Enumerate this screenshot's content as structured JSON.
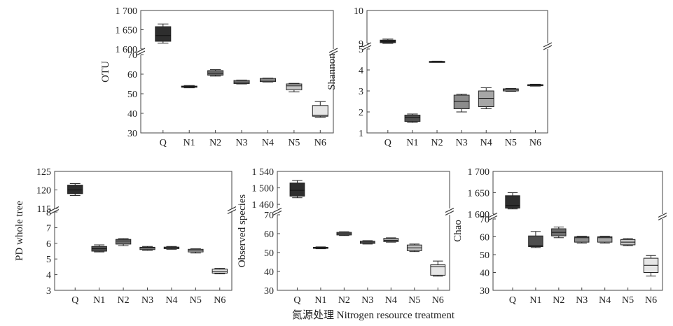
{
  "figure": {
    "x_caption": "氮源处理 Nitrogen resource treatment",
    "colors": [
      "#2e2e2e",
      "#4f4f4f",
      "#6e6e6e",
      "#8c8c8c",
      "#a6a6a6",
      "#c4c4c4",
      "#e6e6e6"
    ]
  },
  "chart_data": [
    {
      "type": "box",
      "ylabel": "OTU",
      "categories": [
        "Q",
        "N1",
        "N2",
        "N3",
        "N4",
        "N5",
        "N6"
      ],
      "broken_axis": true,
      "upper": {
        "ylim": [
          1600,
          1700
        ],
        "ticks": [
          1600,
          1650,
          1700
        ],
        "tick_labels": [
          "1 600",
          "1 650",
          "1 700"
        ]
      },
      "lower": {
        "ylim": [
          30,
          70
        ],
        "ticks": [
          30,
          40,
          50,
          60,
          70
        ],
        "tick_labels": [
          "30",
          "40",
          "50",
          "60",
          "70"
        ]
      },
      "boxes": [
        {
          "cat": "Q",
          "min": 1615,
          "q1": 1620,
          "median": 1635,
          "q3": 1658,
          "max": 1665,
          "segment": "upper"
        },
        {
          "cat": "N1",
          "min": 53,
          "q1": 53.3,
          "median": 53.6,
          "q3": 53.9,
          "max": 54.2,
          "segment": "lower"
        },
        {
          "cat": "N2",
          "min": 59,
          "q1": 59.5,
          "median": 60.5,
          "q3": 61.8,
          "max": 62.3,
          "segment": "lower"
        },
        {
          "cat": "N3",
          "min": 55,
          "q1": 55.2,
          "median": 56,
          "q3": 56.8,
          "max": 57,
          "segment": "lower"
        },
        {
          "cat": "N4",
          "min": 56,
          "q1": 56.2,
          "median": 57,
          "q3": 57.8,
          "max": 58,
          "segment": "lower"
        },
        {
          "cat": "N5",
          "min": 51,
          "q1": 52,
          "median": 54,
          "q3": 55,
          "max": 55.3,
          "segment": "lower"
        },
        {
          "cat": "N6",
          "min": 38,
          "q1": 38.5,
          "median": 39,
          "q3": 44,
          "max": 46,
          "segment": "lower"
        }
      ]
    },
    {
      "type": "box",
      "ylabel": "Shannon",
      "categories": [
        "Q",
        "N1",
        "N2",
        "N3",
        "N4",
        "N5",
        "N6"
      ],
      "broken_axis": true,
      "upper": {
        "ylim": [
          9,
          10
        ],
        "ticks": [
          9,
          10
        ],
        "tick_labels": [
          "9",
          "10"
        ]
      },
      "lower": {
        "ylim": [
          1,
          5
        ],
        "ticks": [
          1,
          2,
          3,
          4,
          5
        ],
        "tick_labels": [
          "1",
          "2",
          "3",
          "4",
          "5"
        ]
      },
      "boxes": [
        {
          "cat": "Q",
          "min": 9.0,
          "q1": 9.02,
          "median": 9.06,
          "q3": 9.1,
          "max": 9.13,
          "segment": "upper"
        },
        {
          "cat": "N1",
          "min": 1.5,
          "q1": 1.55,
          "median": 1.75,
          "q3": 1.85,
          "max": 1.9,
          "segment": "lower"
        },
        {
          "cat": "N2",
          "min": 4.38,
          "q1": 4.39,
          "median": 4.4,
          "q3": 4.41,
          "max": 4.42,
          "segment": "lower"
        },
        {
          "cat": "N3",
          "min": 2.0,
          "q1": 2.15,
          "median": 2.5,
          "q3": 2.8,
          "max": 2.85,
          "segment": "lower"
        },
        {
          "cat": "N4",
          "min": 2.15,
          "q1": 2.25,
          "median": 2.65,
          "q3": 3.0,
          "max": 3.15,
          "segment": "lower"
        },
        {
          "cat": "N5",
          "min": 2.98,
          "q1": 3.0,
          "median": 3.05,
          "q3": 3.1,
          "max": 3.12,
          "segment": "lower"
        },
        {
          "cat": "N6",
          "min": 3.23,
          "q1": 3.25,
          "median": 3.28,
          "q3": 3.3,
          "max": 3.32,
          "segment": "lower"
        }
      ]
    },
    {
      "type": "box",
      "ylabel": "PD whole tree",
      "categories": [
        "Q",
        "N1",
        "N2",
        "N3",
        "N4",
        "N5",
        "N6"
      ],
      "broken_axis": true,
      "upper": {
        "ylim": [
          115,
          125
        ],
        "ticks": [
          115,
          120,
          125
        ],
        "tick_labels": [
          "115",
          "120",
          "125"
        ]
      },
      "lower": {
        "ylim": [
          3,
          8
        ],
        "ticks": [
          3,
          4,
          5,
          6,
          7,
          8
        ],
        "tick_labels": [
          "3",
          "4",
          "5",
          "6",
          "7",
          "8"
        ]
      },
      "boxes": [
        {
          "cat": "Q",
          "min": 118.5,
          "q1": 119,
          "median": 120,
          "q3": 121.3,
          "max": 121.7,
          "segment": "upper"
        },
        {
          "cat": "N1",
          "min": 5.45,
          "q1": 5.5,
          "median": 5.65,
          "q3": 5.8,
          "max": 5.9,
          "segment": "lower"
        },
        {
          "cat": "N2",
          "min": 5.85,
          "q1": 5.95,
          "median": 6.15,
          "q3": 6.25,
          "max": 6.3,
          "segment": "lower"
        },
        {
          "cat": "N3",
          "min": 5.55,
          "q1": 5.6,
          "median": 5.7,
          "q3": 5.75,
          "max": 5.8,
          "segment": "lower"
        },
        {
          "cat": "N4",
          "min": 5.62,
          "q1": 5.66,
          "median": 5.72,
          "q3": 5.76,
          "max": 5.8,
          "segment": "lower"
        },
        {
          "cat": "N5",
          "min": 5.38,
          "q1": 5.45,
          "median": 5.55,
          "q3": 5.62,
          "max": 5.65,
          "segment": "lower"
        },
        {
          "cat": "N6",
          "min": 4.05,
          "q1": 4.1,
          "median": 4.2,
          "q3": 4.35,
          "max": 4.4,
          "segment": "lower"
        }
      ]
    },
    {
      "type": "box",
      "ylabel": "Observed species",
      "categories": [
        "Q",
        "N1",
        "N2",
        "N3",
        "N4",
        "N5",
        "N6"
      ],
      "broken_axis": true,
      "upper": {
        "ylim": [
          1450,
          1540
        ],
        "ticks": [
          1460,
          1500,
          1540
        ],
        "tick_labels": [
          "1 460",
          "1 500",
          "1 540"
        ]
      },
      "lower": {
        "ylim": [
          30,
          70
        ],
        "ticks": [
          30,
          40,
          50,
          60,
          70
        ],
        "tick_labels": [
          "30",
          "40",
          "50",
          "60",
          "70"
        ]
      },
      "boxes": [
        {
          "cat": "Q",
          "min": 1476,
          "q1": 1480,
          "median": 1494,
          "q3": 1512,
          "max": 1518,
          "segment": "upper"
        },
        {
          "cat": "N1",
          "min": 52,
          "q1": 52.2,
          "median": 52.5,
          "q3": 52.8,
          "max": 53,
          "segment": "lower"
        },
        {
          "cat": "N2",
          "min": 59,
          "q1": 59.3,
          "median": 60,
          "q3": 60.7,
          "max": 61,
          "segment": "lower"
        },
        {
          "cat": "N3",
          "min": 54.5,
          "q1": 54.8,
          "median": 55.5,
          "q3": 56,
          "max": 56.3,
          "segment": "lower"
        },
        {
          "cat": "N4",
          "min": 55.5,
          "q1": 55.8,
          "median": 56.5,
          "q3": 57.5,
          "max": 57.8,
          "segment": "lower"
        },
        {
          "cat": "N5",
          "min": 50.5,
          "q1": 51,
          "median": 52.5,
          "q3": 54,
          "max": 54.5,
          "segment": "lower"
        },
        {
          "cat": "N6",
          "min": 37.5,
          "q1": 38,
          "median": 42.5,
          "q3": 43.5,
          "max": 45.5,
          "segment": "lower"
        }
      ]
    },
    {
      "type": "box",
      "ylabel": "Chao",
      "categories": [
        "Q",
        "N1",
        "N2",
        "N3",
        "N4",
        "N5",
        "N6"
      ],
      "broken_axis": true,
      "upper": {
        "ylim": [
          1600,
          1700
        ],
        "ticks": [
          1600,
          1650,
          1700
        ],
        "tick_labels": [
          "1 600",
          "1 650",
          "1 700"
        ]
      },
      "lower": {
        "ylim": [
          30,
          70
        ],
        "ticks": [
          30,
          40,
          50,
          60,
          70
        ],
        "tick_labels": [
          "30",
          "40",
          "50",
          "60",
          "70"
        ]
      },
      "boxes": [
        {
          "cat": "Q",
          "min": 1612,
          "q1": 1614,
          "median": 1620,
          "q3": 1643,
          "max": 1650,
          "segment": "upper"
        },
        {
          "cat": "N1",
          "min": 54,
          "q1": 54.5,
          "median": 55,
          "q3": 60.5,
          "max": 63,
          "segment": "lower"
        },
        {
          "cat": "N2",
          "min": 59.5,
          "q1": 60.5,
          "median": 62.5,
          "q3": 64.5,
          "max": 65.5,
          "segment": "lower"
        },
        {
          "cat": "N3",
          "min": 56.5,
          "q1": 57,
          "median": 59.5,
          "q3": 60,
          "max": 60.3,
          "segment": "lower"
        },
        {
          "cat": "N4",
          "min": 56.5,
          "q1": 57,
          "median": 59.5,
          "q3": 60,
          "max": 60.3,
          "segment": "lower"
        },
        {
          "cat": "N5",
          "min": 55,
          "q1": 55.5,
          "median": 57,
          "q3": 58.5,
          "max": 59,
          "segment": "lower"
        },
        {
          "cat": "N6",
          "min": 38,
          "q1": 40,
          "median": 44,
          "q3": 48,
          "max": 49.5,
          "segment": "lower"
        }
      ]
    }
  ]
}
